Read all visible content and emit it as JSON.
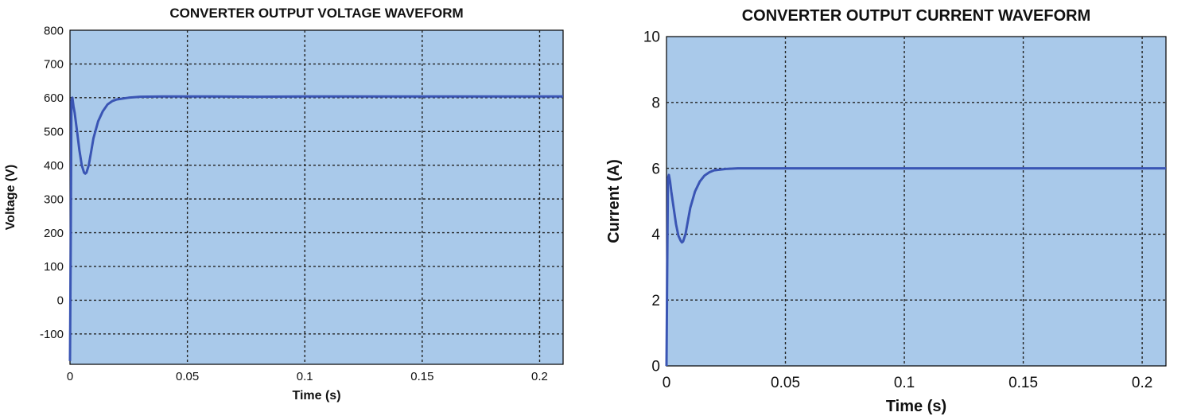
{
  "chart_data": [
    {
      "type": "line",
      "title": "CONVERTER OUTPUT VOLTAGE WAVEFORM",
      "xlabel": "Time (s)",
      "ylabel": "Voltage (V)",
      "xlim": [
        0,
        0.21
      ],
      "ylim": [
        -190,
        800
      ],
      "xticks": [
        0,
        0.05,
        0.1,
        0.15,
        0.2
      ],
      "xtick_labels": [
        "0",
        "0.05",
        "0.1",
        "0.15",
        "0.2"
      ],
      "yticks": [
        -100,
        0,
        100,
        200,
        300,
        400,
        500,
        600,
        700,
        800
      ],
      "ytick_labels": [
        "-100",
        "0",
        "100",
        "200",
        "300",
        "400",
        "500",
        "600",
        "700",
        "800"
      ],
      "grid": true,
      "line_color": "#3a55b4",
      "series": [
        {
          "x": [
            0,
            0.0003,
            0.0006,
            0.001,
            0.0015,
            0.002,
            0.003,
            0.004,
            0.005,
            0.006,
            0.0065,
            0.007,
            0.008,
            0.009,
            0.01,
            0.012,
            0.014,
            0.016,
            0.018,
            0.02,
            0.025,
            0.03,
            0.04,
            0.06,
            0.08,
            0.1,
            0.15,
            0.21
          ],
          "y": [
            -180,
            150,
            590,
            600,
            575,
            555,
            500,
            445,
            400,
            378,
            375,
            378,
            400,
            440,
            480,
            530,
            560,
            580,
            590,
            595,
            600,
            603,
            604,
            604,
            603,
            604,
            604,
            604
          ]
        }
      ]
    },
    {
      "type": "line",
      "title": "CONVERTER OUTPUT CURRENT WAVEFORM",
      "xlabel": "Time (s)",
      "ylabel": "Current (A)",
      "xlim": [
        0,
        0.21
      ],
      "ylim": [
        0,
        10
      ],
      "xticks": [
        0,
        0.05,
        0.1,
        0.15,
        0.2
      ],
      "xtick_labels": [
        "0",
        "0.05",
        "0.1",
        "0.15",
        "0.2"
      ],
      "yticks": [
        0,
        2,
        4,
        6,
        8,
        10
      ],
      "ytick_labels": [
        "0",
        "2",
        "4",
        "6",
        "8",
        "10"
      ],
      "grid": true,
      "line_color": "#3a55b4",
      "series": [
        {
          "x": [
            0,
            0.0003,
            0.0006,
            0.001,
            0.0015,
            0.002,
            0.003,
            0.004,
            0.005,
            0.006,
            0.0065,
            0.007,
            0.008,
            0.009,
            0.01,
            0.012,
            0.014,
            0.016,
            0.018,
            0.02,
            0.025,
            0.03,
            0.05,
            0.1,
            0.21
          ],
          "y": [
            0,
            2.9,
            5.7,
            5.8,
            5.6,
            5.3,
            4.8,
            4.3,
            3.95,
            3.8,
            3.75,
            3.78,
            4.0,
            4.4,
            4.8,
            5.3,
            5.6,
            5.78,
            5.88,
            5.94,
            5.98,
            6.0,
            6.0,
            6.0,
            6.0
          ]
        }
      ]
    }
  ]
}
